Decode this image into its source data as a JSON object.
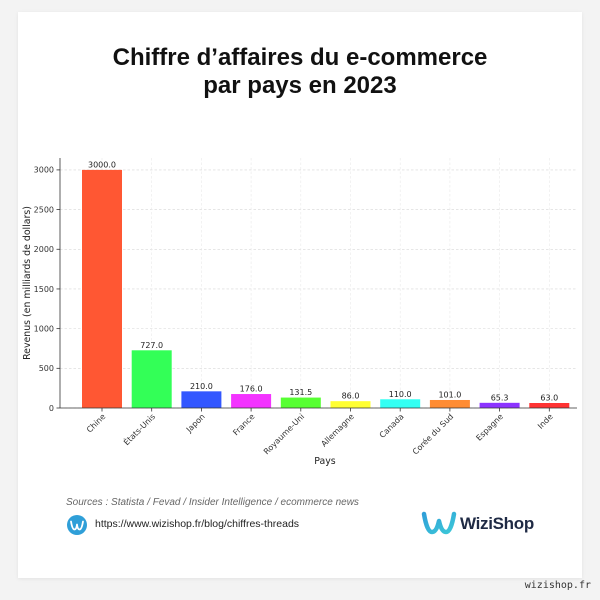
{
  "chart_data": {
    "type": "bar",
    "title": "Chiffre d’affaires du e-commerce par pays en 2023",
    "categories": [
      "Chine",
      "États-Unis",
      "Japon",
      "France",
      "Royaume-Uni",
      "Allemagne",
      "Canada",
      "Corée du Sud",
      "Espagne",
      "Inde"
    ],
    "values": [
      3000.0,
      727.0,
      210.0,
      176.0,
      131.5,
      86.0,
      110.0,
      101.0,
      65.3,
      63.0
    ],
    "value_labels": [
      "3000.0",
      "727.0",
      "210.0",
      "176.0",
      "131.5",
      "86.0",
      "110.0",
      "101.0",
      "65.3",
      "63.0"
    ],
    "colors": [
      "#FF5733",
      "#33FF57",
      "#3357FF",
      "#F333FF",
      "#57FF33",
      "#FFFF33",
      "#33FFF3",
      "#FF8C33",
      "#8C33FF",
      "#FF3333"
    ],
    "xlabel": "Pays",
    "ylabel": "Revenus (en milliards de dollars)",
    "ylim": [
      0,
      3150
    ],
    "yticks": [
      0,
      500,
      1000,
      1500,
      2000,
      2500,
      3000
    ],
    "grid": true
  },
  "footer": {
    "sources": "Sources : Statista / Fevad / Insider Intelligence / ecommerce news",
    "url": "https://www.wizishop.fr/blog/chiffres-threads",
    "url_icon": "wizishop-circle-icon",
    "brand_name": "WiziShop",
    "brand_icon": "wizishop-logo-icon"
  },
  "watermark": "wizishop.fr",
  "theme": {
    "page_background": "#f3f3f3",
    "card_background": "#ffffff",
    "brand_blue": "#2f9fd8",
    "brand_cyan": "#3cc8d8",
    "brand_text": "#1f2a44"
  }
}
